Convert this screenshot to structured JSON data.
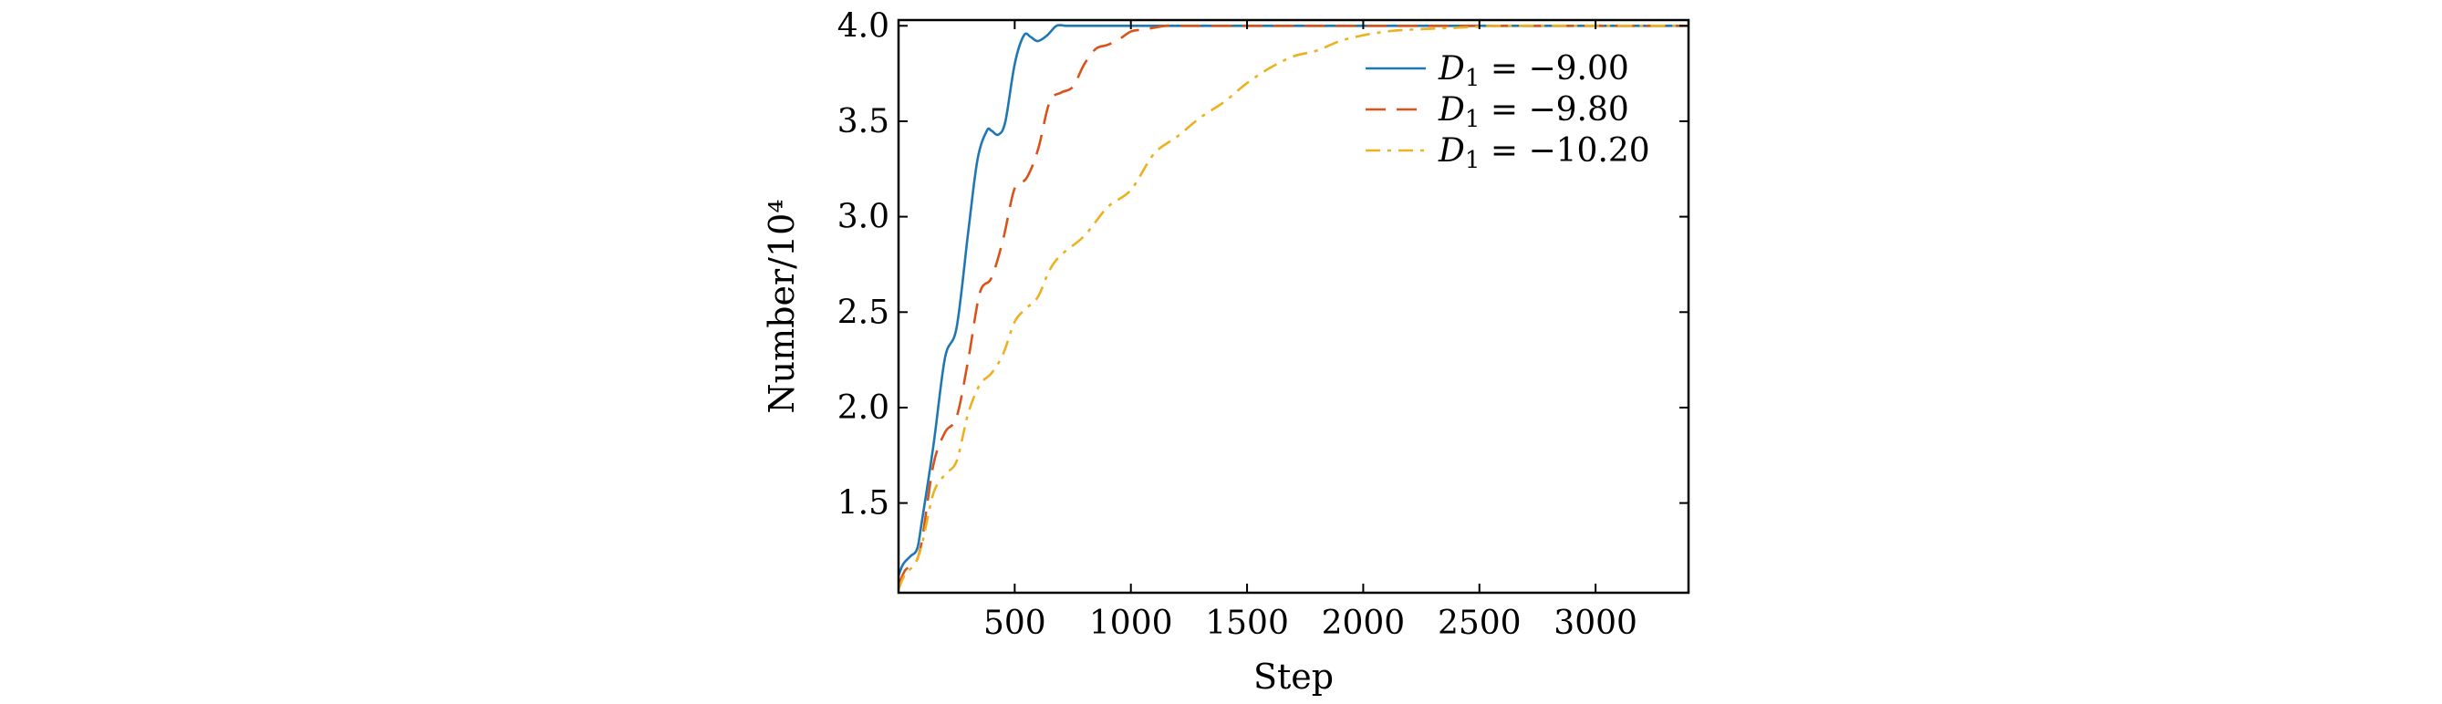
{
  "chart_data": {
    "type": "line",
    "title": "",
    "xlabel": "Step",
    "ylabel": "Number/10⁴",
    "xlim": [
      0,
      3400
    ],
    "ylim": [
      1.03,
      4.03
    ],
    "xticks": [
      500,
      1000,
      1500,
      2000,
      2500,
      3000
    ],
    "xtick_labels": [
      "500",
      "1000",
      "1500",
      "2000",
      "2500",
      "3000"
    ],
    "yticks": [
      1.5,
      2.0,
      2.5,
      3.0,
      3.5,
      4.0
    ],
    "ytick_labels": [
      "1.5",
      "2.0",
      "2.5",
      "3.0",
      "3.5",
      "4.0"
    ],
    "grid": false,
    "legend_position": "top-right",
    "series": [
      {
        "name": "D₁ = −9.00",
        "legend": {
          "var": "D",
          "sub": "1",
          "rest": " = −9.00"
        },
        "color": "#1f77b4",
        "dash": "solid",
        "x": [
          0,
          20,
          50,
          80,
          100,
          150,
          200,
          250,
          300,
          340,
          380,
          400,
          430,
          460,
          500,
          540,
          570,
          600,
          640,
          680,
          720,
          760,
          800,
          1000,
          1500,
          2000,
          2500,
          3000,
          3400
        ],
        "y": [
          1.12,
          1.18,
          1.22,
          1.26,
          1.4,
          1.8,
          2.26,
          2.42,
          2.92,
          3.3,
          3.45,
          3.45,
          3.43,
          3.5,
          3.8,
          3.95,
          3.94,
          3.92,
          3.95,
          4.0,
          4.0,
          4.0,
          4.0,
          4.0,
          4.0,
          4.0,
          4.0,
          4.0,
          4.0
        ]
      },
      {
        "name": "D₁ = −9.80",
        "legend": {
          "var": "D",
          "sub": "1",
          "rest": " = −9.80"
        },
        "color": "#d95319",
        "dash": "dashed",
        "x": [
          0,
          30,
          70,
          100,
          150,
          200,
          250,
          300,
          350,
          400,
          450,
          500,
          550,
          600,
          650,
          700,
          750,
          800,
          850,
          900,
          950,
          1000,
          1050,
          1100,
          1150,
          1200,
          1500,
          2000,
          2500,
          3000,
          3400
        ],
        "y": [
          1.07,
          1.15,
          1.18,
          1.3,
          1.7,
          1.87,
          1.95,
          2.25,
          2.6,
          2.68,
          2.88,
          3.15,
          3.2,
          3.35,
          3.6,
          3.65,
          3.68,
          3.8,
          3.88,
          3.9,
          3.93,
          3.97,
          3.98,
          3.99,
          4.0,
          4.0,
          4.0,
          4.0,
          4.0,
          4.0,
          4.0
        ]
      },
      {
        "name": "D₁ = −10.20",
        "legend": {
          "var": "D",
          "sub": "1",
          "rest": " = −10.20"
        },
        "color": "#edb120",
        "dash": "dashdot",
        "x": [
          0,
          30,
          70,
          100,
          150,
          200,
          250,
          300,
          350,
          400,
          450,
          500,
          550,
          600,
          650,
          700,
          800,
          900,
          1000,
          1100,
          1200,
          1300,
          1400,
          1500,
          1600,
          1700,
          1800,
          1900,
          2000,
          2100,
          2200,
          2400,
          2600,
          3000,
          3400
        ],
        "y": [
          1.05,
          1.13,
          1.18,
          1.28,
          1.55,
          1.65,
          1.72,
          1.97,
          2.12,
          2.18,
          2.28,
          2.45,
          2.52,
          2.58,
          2.72,
          2.8,
          2.9,
          3.05,
          3.14,
          3.33,
          3.42,
          3.52,
          3.6,
          3.7,
          3.78,
          3.84,
          3.87,
          3.92,
          3.95,
          3.97,
          3.98,
          3.99,
          4.0,
          4.0,
          4.0
        ]
      }
    ]
  }
}
